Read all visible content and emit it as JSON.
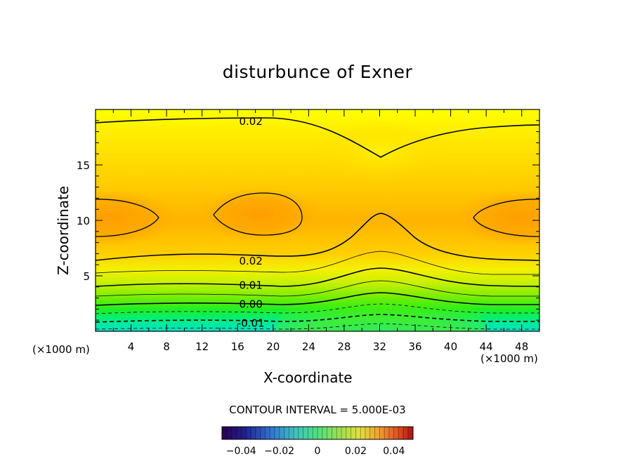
{
  "chart_data": {
    "type": "contour",
    "title": "disturbunce of Exner",
    "xlabel": "X-coordinate",
    "ylabel": "Z-coordinate",
    "x_unit_left": "(×1000 m)",
    "x_unit_right": "(×1000 m)",
    "xlim": [
      0,
      50
    ],
    "ylim": [
      0,
      20
    ],
    "x_ticks": [
      4,
      8,
      12,
      16,
      20,
      24,
      28,
      32,
      36,
      40,
      44,
      48
    ],
    "y_ticks": [
      5,
      10,
      15
    ],
    "contour_interval_label": "CONTOUR INTERVAL = 5.000E-03",
    "contour_labels": [
      {
        "text": "0.02",
        "x": 17.5,
        "z": 19.0
      },
      {
        "text": "0.02",
        "x": 17.5,
        "z": 6.4
      },
      {
        "text": "0.01",
        "x": 17.5,
        "z": 4.2
      },
      {
        "text": "0.00",
        "x": 17.5,
        "z": 2.5
      },
      {
        "text": "-0.01",
        "x": 17.5,
        "z": 0.8
      }
    ],
    "colorbar": {
      "min": -0.05,
      "max": 0.05,
      "tick_values": [
        -0.04,
        -0.02,
        0,
        0.02,
        0.04
      ],
      "tick_labels": [
        "−0.04",
        "−0.02",
        "0",
        "0.02",
        "0.04"
      ]
    }
  }
}
